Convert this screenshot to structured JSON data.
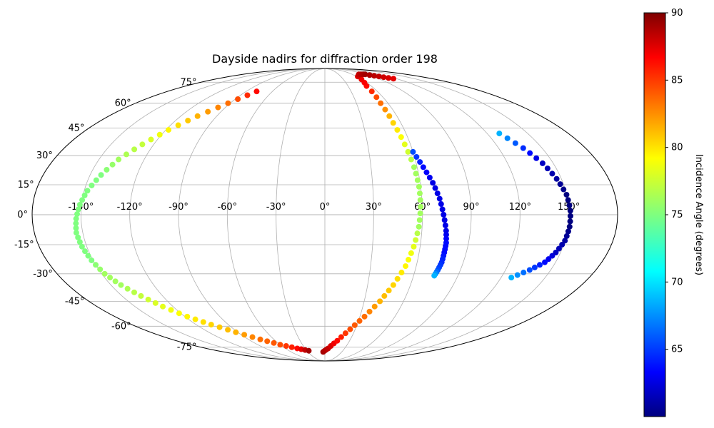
{
  "chart_data": {
    "type": "scatter",
    "projection": "mollweide",
    "title": "Dayside nadirs for diffraction order 198",
    "grid": true,
    "lon_ticks": [
      "-150°",
      "-120°",
      "-90°",
      "-60°",
      "-30°",
      "0°",
      "30°",
      "60°",
      "90°",
      "120°",
      "150°"
    ],
    "lat_ticks": [
      "-75°",
      "-60°",
      "-45°",
      "-30°",
      "-15°",
      "0°",
      "15°",
      "30°",
      "45°",
      "60°",
      "75°"
    ],
    "colorbar": {
      "label": "Incidence Angle (degrees)",
      "colormap": "jet",
      "range": [
        60,
        90
      ],
      "ticks": [
        "65",
        "70",
        "75",
        "80",
        "85",
        "90"
      ]
    },
    "series": [
      {
        "lon": [
          -78,
          -92,
          -106,
          -118,
          -128,
          -137,
          -143,
          -148,
          -151,
          -153,
          -154,
          -153,
          -151,
          -148,
          -143,
          -136,
          -128,
          -118,
          -106,
          -92,
          -76,
          -60,
          -42,
          -27
        ],
        "lat": [
          68,
          60,
          52,
          44,
          36,
          28,
          20,
          12,
          5,
          -2,
          -9,
          -16,
          -23,
          -30,
          -36,
          -42,
          -48,
          -54,
          -59,
          -64,
          -69,
          -73,
          -76,
          -78
        ],
        "incidence": [
          86,
          83,
          81,
          79,
          77,
          76,
          75,
          75,
          75,
          75,
          75,
          75,
          75,
          76,
          76,
          77,
          78,
          79,
          80,
          81,
          83,
          84,
          86,
          89
        ]
      },
      {
        "lon": [
          -3,
          5,
          15,
          25,
          34,
          42,
          48,
          53,
          56,
          58,
          59,
          59,
          58,
          56,
          54,
          53,
          54,
          62,
          74,
          88,
          102,
          115
        ],
        "lat": [
          -79,
          -76,
          -70,
          -62,
          -54,
          -45,
          -36,
          -26,
          -16,
          -6,
          4,
          14,
          24,
          36,
          48,
          60,
          72,
          80,
          82,
          82,
          80,
          78
        ],
        "incidence": [
          89,
          88,
          86,
          84,
          83,
          81,
          80,
          79,
          78,
          76,
          76,
          76,
          76,
          78,
          80,
          83,
          86,
          87,
          88,
          89,
          88,
          87
        ]
      },
      {
        "lon": [
          60,
          64,
          68,
          71,
          73,
          75,
          76,
          76,
          76,
          75,
          74
        ],
        "lat": [
          32,
          24,
          16,
          8,
          0,
          -8,
          -14,
          -19,
          -24,
          -28,
          -31
        ],
        "incidence": [
          66,
          64,
          63,
          63,
          63,
          63,
          64,
          64,
          65,
          66,
          69
        ]
      },
      {
        "lon": [
          129,
          137,
          143,
          147,
          150,
          151,
          151,
          150,
          147,
          143,
          136,
          127
        ],
        "lat": [
          42,
          34,
          26,
          18,
          10,
          2,
          -6,
          -13,
          -19,
          -24,
          -28,
          -32
        ],
        "incidence": [
          69,
          65,
          62,
          61,
          60,
          60,
          60,
          61,
          62,
          64,
          66,
          69
        ]
      }
    ]
  }
}
